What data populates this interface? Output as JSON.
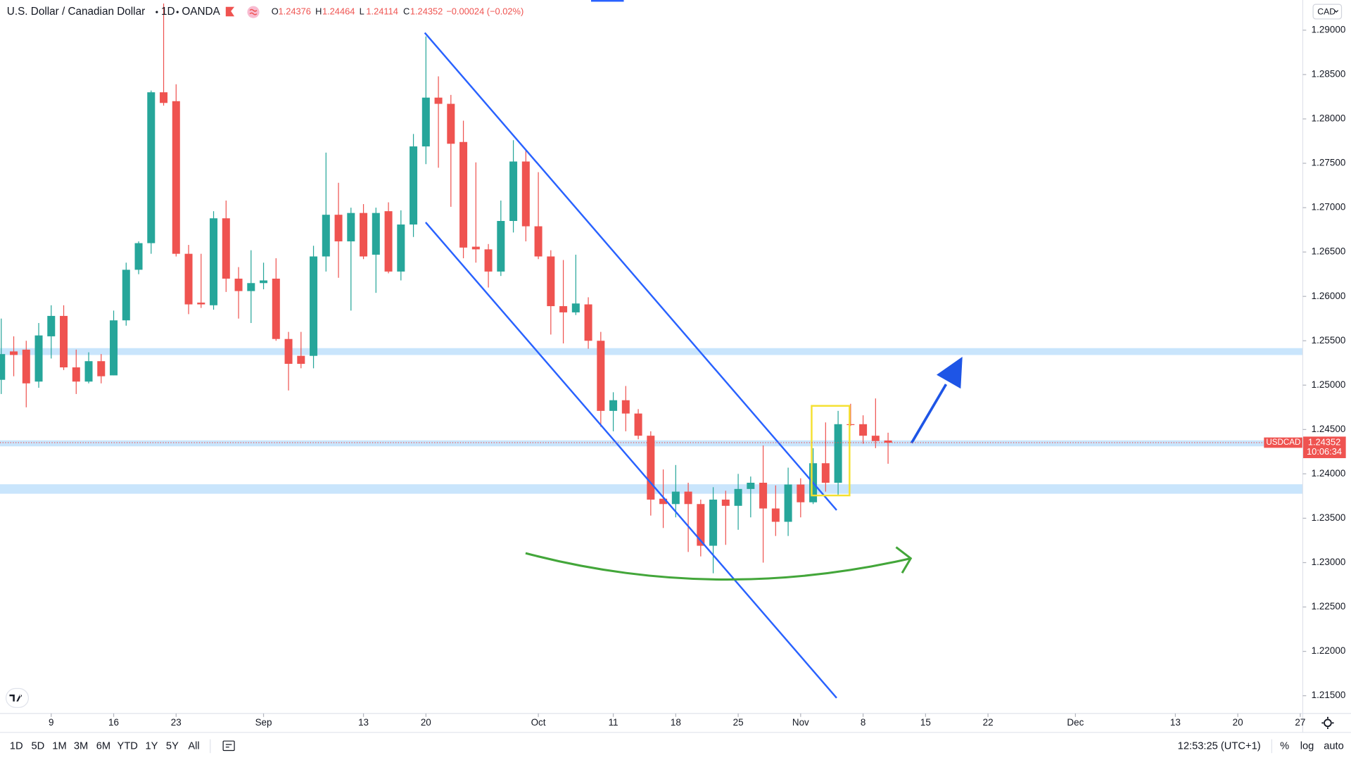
{
  "header": {
    "symbol": "U.S. Dollar / Canadian Dollar",
    "interval": "1D",
    "exchange": "OANDA",
    "ohlc": [
      {
        "label": "O",
        "value": 1.24376
      },
      {
        "label": "H",
        "value": 1.24464
      },
      {
        "label": "L",
        "value": 1.24114
      },
      {
        "label": "C",
        "value": 1.24352
      }
    ],
    "change": "−0.00024 (−0.02%)"
  },
  "chart_data": {
    "type": "candlestick",
    "open": [
      1.2506,
      1.2538,
      1.254,
      1.2504,
      1.2555,
      1.2578,
      1.252,
      1.2504,
      1.2527,
      1.2511,
      1.2573,
      1.263,
      1.266,
      1.283,
      1.282,
      1.2648,
      1.2593,
      1.259,
      1.2688,
      1.262,
      1.2606,
      1.2615,
      1.262,
      1.2552,
      1.2533,
      1.2533,
      1.2645,
      1.2692,
      1.2662,
      1.2694,
      1.2647,
      1.2696,
      1.2628,
      1.2681,
      1.2769,
      1.2824,
      1.2817,
      1.2774,
      1.2656,
      1.2653,
      1.2628,
      1.2685,
      1.2752,
      1.2679,
      1.2645,
      1.2589,
      1.2582,
      1.2591,
      1.255,
      1.2471,
      1.2483,
      1.2468,
      1.2443,
      1.2372,
      1.2366,
      1.238,
      1.2366,
      1.2319,
      1.2371,
      1.2364,
      1.2383,
      1.239,
      1.2361,
      1.2346,
      1.2388,
      1.2368,
      1.2412,
      1.239,
      1.2456,
      1.2456,
      1.2443,
      1.24376
    ],
    "high": [
      1.2575,
      1.2555,
      1.255,
      1.257,
      1.259,
      1.259,
      1.254,
      1.2537,
      1.2535,
      1.2584,
      1.2638,
      1.2662,
      1.2832,
      1.293,
      1.2839,
      1.2658,
      1.2648,
      1.2696,
      1.2708,
      1.2633,
      1.2652,
      1.2638,
      1.2643,
      1.256,
      1.256,
      1.2657,
      1.2762,
      1.2728,
      1.27,
      1.2704,
      1.27,
      1.2706,
      1.2697,
      1.2783,
      1.2893,
      1.2848,
      1.2827,
      1.2798,
      1.2751,
      1.2659,
      1.2708,
      1.2776,
      1.2766,
      1.274,
      1.2652,
      1.2641,
      1.2647,
      1.2599,
      1.256,
      1.2492,
      1.2499,
      1.2473,
      1.2448,
      1.2405,
      1.241,
      1.239,
      1.2371,
      1.2385,
      1.2381,
      1.24,
      1.2397,
      1.2432,
      1.2387,
      1.2407,
      1.2395,
      1.2429,
      1.2458,
      1.2471,
      1.2479,
      1.2466,
      1.2485,
      1.24464
    ],
    "low": [
      1.249,
      1.251,
      1.2475,
      1.2497,
      1.253,
      1.2517,
      1.249,
      1.2502,
      1.2502,
      1.2511,
      1.2567,
      1.2625,
      1.2648,
      1.2815,
      1.2645,
      1.258,
      1.2587,
      1.2585,
      1.2605,
      1.2575,
      1.257,
      1.2608,
      1.255,
      1.2494,
      1.2519,
      1.2519,
      1.2628,
      1.2621,
      1.2584,
      1.2642,
      1.2604,
      1.2626,
      1.2618,
      1.2667,
      1.2749,
      1.2745,
      1.2701,
      1.2643,
      1.2638,
      1.261,
      1.2623,
      1.2672,
      1.2662,
      1.2642,
      1.2557,
      1.2547,
      1.2579,
      1.2541,
      1.2453,
      1.2448,
      1.2448,
      1.2439,
      1.2353,
      1.2339,
      1.2351,
      1.2312,
      1.2307,
      1.2288,
      1.232,
      1.2337,
      1.2351,
      1.23,
      1.233,
      1.233,
      1.2351,
      1.2366,
      1.238,
      1.2375,
      1.2454,
      1.2434,
      1.2429,
      1.24114
    ],
    "close": [
      1.2535,
      1.2534,
      1.2502,
      1.2556,
      1.2578,
      1.252,
      1.2504,
      1.2527,
      1.251,
      1.2573,
      1.263,
      1.266,
      1.283,
      1.2818,
      1.2648,
      1.2591,
      1.2591,
      1.2688,
      1.262,
      1.2606,
      1.2615,
      1.2618,
      1.2552,
      1.2524,
      1.2524,
      1.2645,
      1.2692,
      1.2662,
      1.2694,
      1.2645,
      1.2694,
      1.2628,
      1.2681,
      1.2769,
      1.2824,
      1.2817,
      1.2772,
      1.2655,
      1.2653,
      1.2628,
      1.2685,
      1.2752,
      1.2679,
      1.2645,
      1.2589,
      1.2582,
      1.2592,
      1.255,
      1.2471,
      1.2483,
      1.2468,
      1.2443,
      1.2371,
      1.2366,
      1.238,
      1.2366,
      1.2319,
      1.2371,
      1.2364,
      1.2383,
      1.239,
      1.2361,
      1.2346,
      1.2388,
      1.2368,
      1.2412,
      1.239,
      1.2456,
      1.2455,
      1.2443,
      1.2437,
      1.24352
    ],
    "up_color": "#26a69a",
    "down_color": "#ef5350",
    "xlim": [
      -0.1,
      104.2
    ],
    "xticks": [
      {
        "value": 4,
        "label": "9"
      },
      {
        "value": 9,
        "label": "16"
      },
      {
        "value": 14,
        "label": "23"
      },
      {
        "value": 21,
        "label": "Sep"
      },
      {
        "value": 29,
        "label": "13"
      },
      {
        "value": 34,
        "label": "20"
      },
      {
        "value": 43,
        "label": "Oct"
      },
      {
        "value": 49,
        "label": "11"
      },
      {
        "value": 54,
        "label": "18"
      },
      {
        "value": 59,
        "label": "25"
      },
      {
        "value": 64,
        "label": "Nov"
      },
      {
        "value": 69,
        "label": "8"
      },
      {
        "value": 74,
        "label": "15"
      },
      {
        "value": 79,
        "label": "22"
      },
      {
        "value": 86,
        "label": "Dec"
      },
      {
        "value": 94,
        "label": "13"
      },
      {
        "value": 99,
        "label": "20"
      },
      {
        "value": 104,
        "label": "27"
      }
    ],
    "ylim": [
      1.213,
      1.2934
    ],
    "yticks": [
      {
        "value": 1.215,
        "label": "1.21500"
      },
      {
        "value": 1.22,
        "label": "1.22000"
      },
      {
        "value": 1.225,
        "label": "1.22500"
      },
      {
        "value": 1.23,
        "label": "1.23000"
      },
      {
        "value": 1.235,
        "label": "1.23500"
      },
      {
        "value": 1.24,
        "label": "1.24000"
      },
      {
        "value": 1.245,
        "label": "1.24500"
      },
      {
        "value": 1.25,
        "label": "1.25000"
      },
      {
        "value": 1.255,
        "label": "1.25500"
      },
      {
        "value": 1.26,
        "label": "1.26000"
      },
      {
        "value": 1.265,
        "label": "1.26500"
      },
      {
        "value": 1.27,
        "label": "1.27000"
      },
      {
        "value": 1.275,
        "label": "1.27500"
      },
      {
        "value": 1.28,
        "label": "1.28000"
      },
      {
        "value": 1.285,
        "label": "1.28500"
      },
      {
        "value": 1.29,
        "label": "1.29000"
      }
    ],
    "last_price": {
      "symbol": "USDCAD",
      "value": 1.24352,
      "countdown": "10:06:34"
    },
    "currency": "CAD"
  },
  "toolbar": {
    "ranges": [
      "1D",
      "5D",
      "1M",
      "3M",
      "6M",
      "YTD",
      "1Y",
      "5Y",
      "All"
    ],
    "clock": "12:53:25 (UTC+1)",
    "options": [
      "%",
      "log",
      "auto"
    ]
  }
}
